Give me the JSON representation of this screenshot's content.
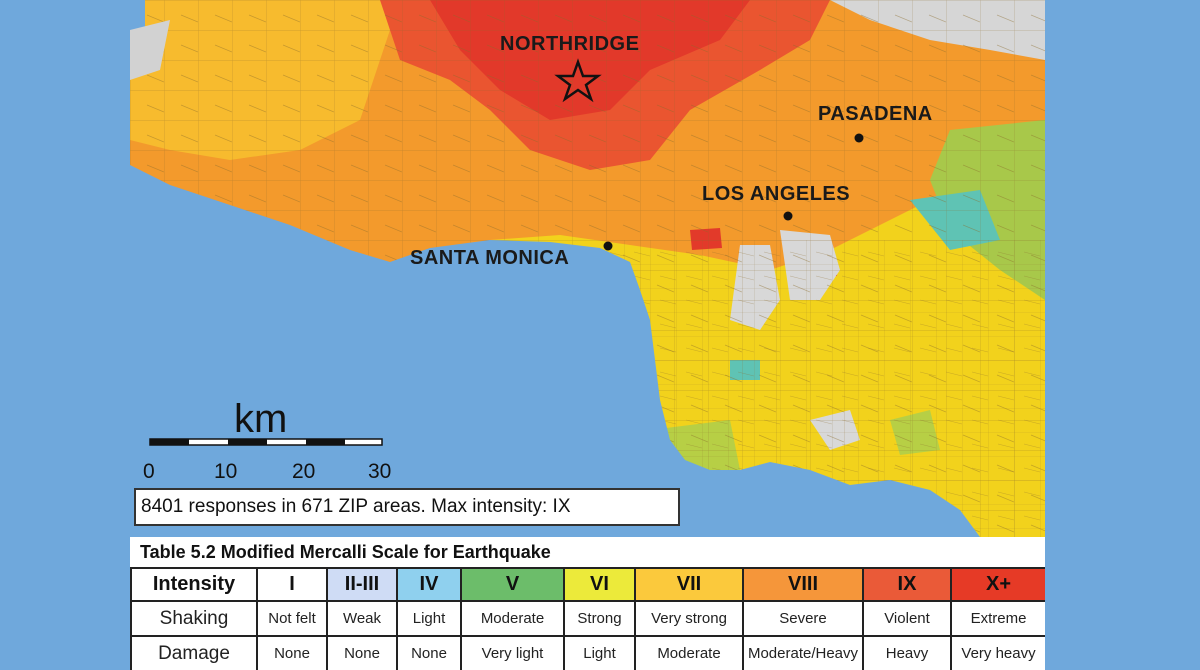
{
  "map": {
    "cities": [
      {
        "name": "NORTHRIDGE",
        "marker": "star-icon"
      },
      {
        "name": "PASADENA",
        "marker": "dot"
      },
      {
        "name": "LOS ANGELES",
        "marker": "dot"
      },
      {
        "name": "SANTA MONICA",
        "marker": "dot"
      }
    ],
    "scale_bar": {
      "unit": "km",
      "ticks": [
        "0",
        "10",
        "20",
        "30"
      ]
    },
    "stats": "8401 responses in 671 ZIP areas. Max intensity: IX",
    "colors": {
      "ocean": "#6fa8dc",
      "IX": "#e8412b",
      "VIII": "#ef7a2a",
      "VII": "#f6ae2d",
      "VI": "#f7e12a",
      "V": "#8dc45a",
      "IV": "#7fcbe0",
      "no_data": "#d8d8d8"
    }
  },
  "table": {
    "caption": "Table 5.2 Modified Mercalli Scale for Earthquake",
    "header_label": "Intensity",
    "row_labels": [
      "Shaking",
      "Damage"
    ],
    "columns": [
      {
        "level": "I",
        "shaking": "Not felt",
        "damage": "None",
        "color": "#ffffff"
      },
      {
        "level": "II-III",
        "shaking": "Weak",
        "damage": "None",
        "color": "#cfdcf5"
      },
      {
        "level": "IV",
        "shaking": "Light",
        "damage": "None",
        "color": "#8fd0ee"
      },
      {
        "level": "V",
        "shaking": "Moderate",
        "damage": "Very light",
        "color": "#6cbd6a"
      },
      {
        "level": "VI",
        "shaking": "Strong",
        "damage": "Light",
        "color": "#ecea3a"
      },
      {
        "level": "VII",
        "shaking": "Very strong",
        "damage": "Moderate",
        "color": "#fbc93c"
      },
      {
        "level": "VIII",
        "shaking": "Severe",
        "damage": "Moderate/Heavy",
        "color": "#f5963a"
      },
      {
        "level": "IX",
        "shaking": "Violent",
        "damage": "Heavy",
        "color": "#ea5a38"
      },
      {
        "level": "X+",
        "shaking": "Extreme",
        "damage": "Very heavy",
        "color": "#e63a26"
      }
    ]
  }
}
